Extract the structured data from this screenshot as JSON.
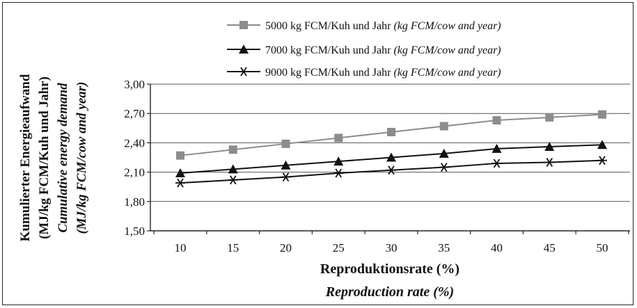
{
  "chart_data": {
    "type": "line",
    "x": [
      10,
      15,
      20,
      25,
      30,
      35,
      40,
      45,
      50
    ],
    "series": [
      {
        "name": "5000 kg FCM/Kuh und Jahr",
        "name_en": "(kg FCM/cow and year)",
        "marker": "square",
        "color": "#8c8c8c",
        "values": [
          2.27,
          2.33,
          2.39,
          2.45,
          2.51,
          2.57,
          2.63,
          2.66,
          2.69
        ]
      },
      {
        "name": "7000 kg FCM/Kuh und Jahr",
        "name_en": "(kg FCM/cow and year)",
        "marker": "triangle",
        "color": "#111111",
        "values": [
          2.09,
          2.13,
          2.17,
          2.21,
          2.25,
          2.29,
          2.34,
          2.36,
          2.38
        ]
      },
      {
        "name": "9000 kg FCM/Kuh und Jahr",
        "name_en": "(kg FCM/cow and year)",
        "marker": "asterisk",
        "color": "#111111",
        "values": [
          1.99,
          2.02,
          2.05,
          2.09,
          2.12,
          2.15,
          2.19,
          2.2,
          2.22
        ]
      }
    ],
    "ylim": [
      1.5,
      3.0
    ],
    "yticks": [
      1.5,
      1.8,
      2.1,
      2.4,
      2.7,
      3.0
    ],
    "ytick_labels": [
      "1,50",
      "1,80",
      "2,10",
      "2,40",
      "2,70",
      "3,00"
    ],
    "xtick_labels": [
      "10",
      "15",
      "20",
      "25",
      "30",
      "35",
      "40",
      "45",
      "50"
    ],
    "xlabel": "Reproduktionsrate (%)",
    "xlabel_en": "Reproduction rate (%)",
    "ylabel_line1": "Kumulierter Energieaufwand",
    "ylabel_line2": "(MJ/kg FCM/Kuh und Jahr)",
    "ylabel_line3": "Cumulative energy demand",
    "ylabel_line4": "(MJ/kg FCM/cow and year)",
    "grid": true,
    "legend_position": "top-right"
  }
}
